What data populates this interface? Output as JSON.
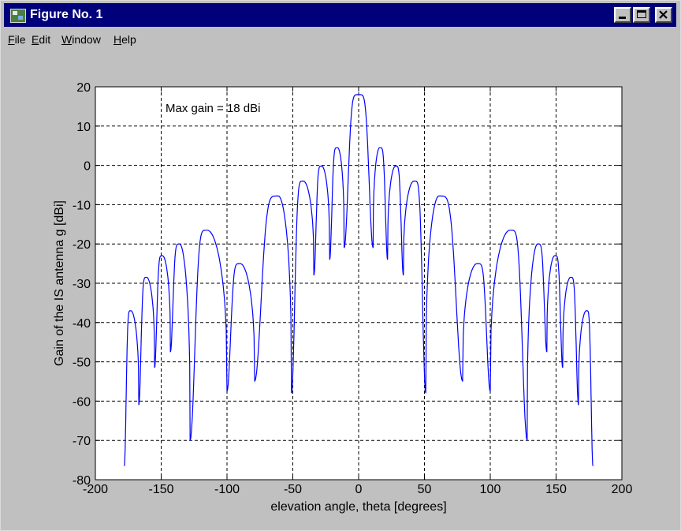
{
  "window": {
    "title": "Figure No. 1",
    "buttons": [
      "minimize",
      "maximize",
      "close"
    ]
  },
  "menu": [
    {
      "label": "File",
      "mnemonic": "F",
      "rest": "ile"
    },
    {
      "label": "Edit",
      "mnemonic": "E",
      "rest": "dit"
    },
    {
      "label": "Window",
      "mnemonic": "W",
      "rest": "indow"
    },
    {
      "label": "Help",
      "mnemonic": "H",
      "rest": "elp"
    }
  ],
  "colors": {
    "title_bar": "#00007a",
    "figure_bg": "#c0c0c0",
    "axes_bg": "#ffffff",
    "line": "#0000ff",
    "grid": "#000000"
  },
  "chart_data": {
    "type": "line",
    "title": "",
    "xlabel": "elevation angle, theta [degrees]",
    "ylabel": "Gain of the IS antenna g [dBi]",
    "xlim": [
      -200,
      200
    ],
    "ylim": [
      -80,
      20
    ],
    "xticks": [
      -200,
      -150,
      -100,
      -50,
      0,
      50,
      100,
      150,
      200
    ],
    "yticks": [
      20,
      10,
      0,
      -10,
      -20,
      -30,
      -40,
      -50,
      -60,
      -70,
      -80
    ],
    "grid": true,
    "grid_style": "dashed",
    "annotation": "Max gain = 18 dBi",
    "series": [
      {
        "color": "#0000ff",
        "peaks": [
          {
            "x": 0,
            "y": 18
          },
          {
            "x": 16,
            "y": 4.5
          },
          {
            "x": 28,
            "y": -0.2
          },
          {
            "x": 42,
            "y": -4
          },
          {
            "x": 61,
            "y": -7.8
          },
          {
            "x": 90,
            "y": -25
          },
          {
            "x": 115,
            "y": -16.5
          },
          {
            "x": 136,
            "y": -20
          },
          {
            "x": 149,
            "y": -23
          },
          {
            "x": 161,
            "y": -28.5
          },
          {
            "x": 173,
            "y": -37
          }
        ],
        "nulls": [
          {
            "x": 11,
            "y": -21
          },
          {
            "x": 22,
            "y": -24
          },
          {
            "x": 34,
            "y": -28
          },
          {
            "x": 51,
            "y": -58
          },
          {
            "x": 79,
            "y": -55
          },
          {
            "x": 100,
            "y": -57.5
          },
          {
            "x": 128,
            "y": -70
          },
          {
            "x": 143,
            "y": -47.5
          },
          {
            "x": 155,
            "y": -51.5
          },
          {
            "x": 167,
            "y": -61
          },
          {
            "x": 178,
            "y": -76.5
          }
        ]
      }
    ]
  }
}
